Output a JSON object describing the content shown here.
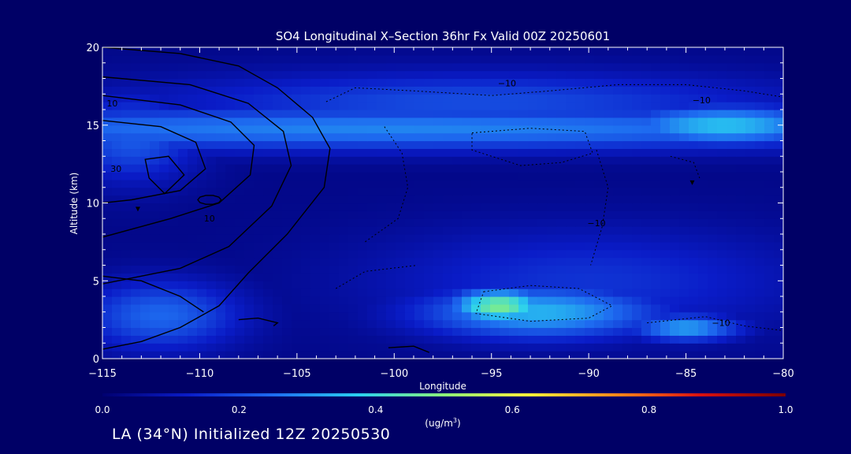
{
  "chart_data": {
    "type": "heatmap",
    "title": "SO4 Longitudinal X–Section 36hr  Fx Valid 00Z 20250601",
    "xlabel": "Longitude",
    "ylabel": "Altitude (km)",
    "xlim": [
      -115,
      -80
    ],
    "ylim": [
      0,
      20
    ],
    "x_ticks": [
      -115,
      -110,
      -105,
      -100,
      -95,
      -90,
      -85,
      -80
    ],
    "y_ticks": [
      0,
      5,
      10,
      15,
      20
    ],
    "x_tick_labels": [
      "−115",
      "−110",
      "−105",
      "−100",
      "−95",
      "−90",
      "−85",
      "−80"
    ],
    "y_tick_labels": [
      "0",
      "5",
      "10",
      "15",
      "20"
    ],
    "colorbar": {
      "range": [
        0.0,
        1.0
      ],
      "ticks": [
        "0.0",
        "0.2",
        "0.4",
        "0.6",
        "0.8",
        "1.0"
      ],
      "label_main": "(ug/m",
      "label_sup": "3",
      "label_end": ")",
      "colors": [
        "#000070",
        "#0a1cc8",
        "#1e6cf0",
        "#2ad0f0",
        "#8cf27a",
        "#fff23a",
        "#ff8a1a",
        "#d81010",
        "#7a0000"
      ]
    },
    "concentration_blobs": [
      {
        "lon": -94.6,
        "alt": 3.4,
        "value": 0.48,
        "sd_lon": 1.8,
        "sd_alt": 0.8
      },
      {
        "lon": -92.5,
        "alt": 3.0,
        "value": 0.34,
        "sd_lon": 4.5,
        "sd_alt": 1.2
      },
      {
        "lon": -85.0,
        "alt": 2.0,
        "value": 0.32,
        "sd_lon": 2.0,
        "sd_alt": 0.6
      },
      {
        "lon": -100.0,
        "alt": 14.8,
        "value": 0.28,
        "sd_lon": 25.0,
        "sd_alt": 1.0
      },
      {
        "lon": -83.0,
        "alt": 15.0,
        "value": 0.36,
        "sd_lon": 4.0,
        "sd_alt": 0.9
      },
      {
        "lon": -96.0,
        "alt": 16.5,
        "value": 0.2,
        "sd_lon": 12.0,
        "sd_alt": 1.4
      },
      {
        "lon": -112.0,
        "alt": 2.8,
        "value": 0.24,
        "sd_lon": 3.0,
        "sd_alt": 1.6
      },
      {
        "lon": -113.5,
        "alt": 14.2,
        "value": 0.22,
        "sd_lon": 2.5,
        "sd_alt": 2.0
      },
      {
        "lon": -90.0,
        "alt": 5.0,
        "value": 0.16,
        "sd_lon": 8.0,
        "sd_alt": 2.5
      }
    ],
    "contour_labels": [
      {
        "text": "10",
        "lon": -114.5,
        "alt": 16.2
      },
      {
        "text": "30",
        "lon": -114.3,
        "alt": 12.0
      },
      {
        "text": "10",
        "lon": -109.5,
        "alt": 8.8
      },
      {
        "text": "−10",
        "lon": -94.2,
        "alt": 17.5
      },
      {
        "text": "−10",
        "lon": -84.2,
        "alt": 16.4
      },
      {
        "text": "−10",
        "lon": -89.6,
        "alt": 8.5
      },
      {
        "text": "−10",
        "lon": -83.2,
        "alt": 2.1
      }
    ]
  },
  "footer": {
    "text": "LA (34°N) Initialized 12Z 20250530"
  }
}
